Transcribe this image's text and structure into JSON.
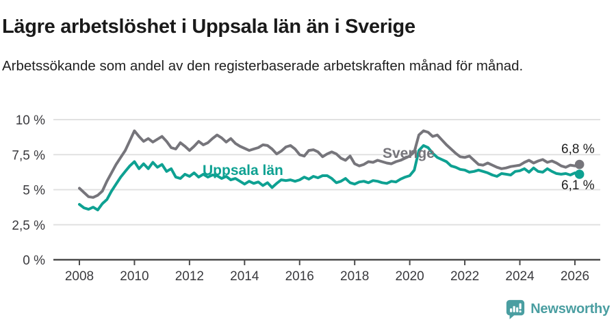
{
  "header": {
    "title": "Lägre arbetslöshet i Uppsala län än i Sverige",
    "subtitle": "Arbetssökande som andel av den registerbaserade arbetskraften månad för månad."
  },
  "footer": {
    "brand": "Newsworthy",
    "logo_icon": "speech-bubble-bar-chart-icon"
  },
  "colors": {
    "sverige_line": "#76757b",
    "uppsala_line": "#0ea192",
    "grid": "#e1e1e1",
    "axis": "#4a4a4a",
    "tick_text": "#3a3a3e",
    "text": "#1d1d1d",
    "brand": "#4a9ea1"
  },
  "chart_data": {
    "type": "line",
    "title": "Lägre arbetslöshet i Uppsala län än i Sverige",
    "subtitle": "Arbetssökande som andel av den registerbaserade arbetskraften månad för månad.",
    "xlabel": "",
    "ylabel": "",
    "grid": "horizontal",
    "legend_position": "inline-labels",
    "ylim": [
      0,
      10.5
    ],
    "xlim": [
      2007.05,
      2026.95
    ],
    "x_axis": {
      "ticks": [
        2008,
        2010,
        2012,
        2014,
        2016,
        2018,
        2020,
        2022,
        2024,
        2026
      ]
    },
    "y_axis": {
      "ticks": [
        {
          "value": 0,
          "label": "0 %"
        },
        {
          "value": 2.5,
          "label": "2,5 %"
        },
        {
          "value": 5,
          "label": "5 %"
        },
        {
          "value": 7.5,
          "label": "7,5 %"
        },
        {
          "value": 10,
          "label": "10 %"
        }
      ]
    },
    "x_start": 2008.0,
    "x_step_years": 0.166667,
    "unit": "percent of registered labour force",
    "series": [
      {
        "name": "Sverige",
        "color": "#76757b",
        "end_label": "6,8 %",
        "end_value": 6.8,
        "values": [
          5.1,
          4.8,
          4.5,
          4.45,
          4.6,
          4.9,
          5.6,
          6.2,
          6.8,
          7.3,
          7.8,
          8.5,
          9.2,
          8.8,
          8.45,
          8.65,
          8.4,
          8.6,
          8.8,
          8.45,
          8.0,
          7.9,
          8.35,
          8.1,
          7.8,
          8.1,
          8.45,
          8.2,
          8.35,
          8.65,
          8.9,
          8.7,
          8.4,
          8.65,
          8.3,
          8.1,
          7.95,
          7.8,
          7.9,
          8.0,
          8.2,
          8.15,
          7.9,
          7.55,
          7.75,
          8.05,
          8.15,
          7.9,
          7.5,
          7.4,
          7.8,
          7.85,
          7.7,
          7.35,
          7.55,
          7.7,
          7.55,
          7.25,
          7.1,
          7.4,
          6.85,
          6.7,
          6.8,
          7.0,
          6.95,
          7.1,
          7.0,
          6.9,
          6.85,
          7.0,
          7.1,
          7.25,
          7.4,
          7.7,
          8.9,
          9.2,
          9.1,
          8.8,
          8.9,
          8.55,
          8.2,
          7.9,
          7.6,
          7.35,
          7.3,
          7.4,
          7.1,
          6.8,
          6.75,
          6.9,
          6.75,
          6.6,
          6.5,
          6.55,
          6.65,
          6.7,
          6.75,
          6.95,
          7.1,
          6.9,
          7.05,
          7.15,
          6.95,
          7.05,
          6.9,
          6.7,
          6.6,
          6.75,
          6.7,
          6.8
        ]
      },
      {
        "name": "Uppsala län",
        "color": "#0ea192",
        "end_label": "6,1 %",
        "end_value": 6.1,
        "values": [
          3.95,
          3.7,
          3.6,
          3.75,
          3.55,
          4.0,
          4.3,
          4.9,
          5.4,
          5.9,
          6.3,
          6.7,
          7.0,
          6.5,
          6.85,
          6.5,
          6.95,
          6.6,
          6.8,
          6.3,
          6.5,
          5.9,
          5.8,
          6.1,
          5.95,
          6.2,
          5.9,
          6.1,
          5.9,
          6.05,
          6.0,
          5.8,
          5.95,
          5.7,
          5.8,
          5.6,
          5.4,
          5.6,
          5.45,
          5.55,
          5.3,
          5.5,
          5.15,
          5.45,
          5.7,
          5.65,
          5.7,
          5.6,
          5.7,
          5.9,
          5.75,
          5.95,
          5.85,
          6.0,
          6.0,
          5.8,
          5.5,
          5.6,
          5.8,
          5.5,
          5.4,
          5.55,
          5.6,
          5.5,
          5.65,
          5.6,
          5.5,
          5.45,
          5.6,
          5.55,
          5.75,
          5.9,
          6.0,
          6.4,
          7.8,
          8.15,
          8.0,
          7.6,
          7.3,
          7.15,
          7.0,
          6.7,
          6.6,
          6.45,
          6.4,
          6.25,
          6.3,
          6.4,
          6.3,
          6.2,
          6.05,
          5.95,
          6.15,
          6.1,
          6.05,
          6.3,
          6.35,
          6.5,
          6.25,
          6.55,
          6.3,
          6.25,
          6.5,
          6.3,
          6.15,
          6.1,
          6.15,
          6.05,
          6.2,
          6.1
        ]
      }
    ],
    "annotations": [
      {
        "text": "Sverige",
        "type": "series-label",
        "color": "#76757b"
      },
      {
        "text": "Uppsala län",
        "type": "series-label",
        "color": "#0ea192"
      },
      {
        "text": "6,8 %",
        "type": "end-value-label",
        "series": "Sverige"
      },
      {
        "text": "6,1 %",
        "type": "end-value-label",
        "series": "Uppsala län"
      }
    ]
  }
}
